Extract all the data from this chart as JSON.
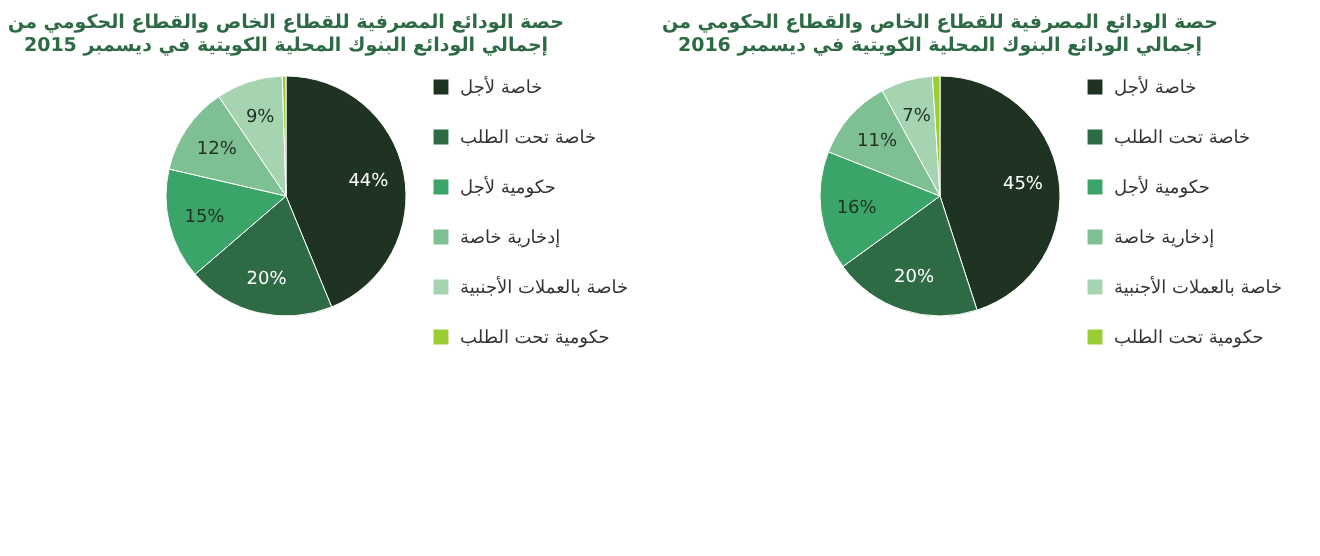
{
  "chart_data": [
    {
      "type": "pie",
      "title": "حصة الودائع المصرفية للقطاع الخاص والقطاع الحكومي من\nإجمالي الودائع البنوك المحلية الكويتية  في ديسمبر 2015",
      "categories": [
        "خاصة لأجل",
        "خاصة تحت الطلب",
        "حكومية لأجل",
        "إدخارية خاصة",
        "خاصة  بالعملات الأجنبية",
        "حكومية تحت الطلب"
      ],
      "values": [
        44,
        20,
        15,
        12,
        9,
        0.5
      ],
      "value_labels": [
        "44%",
        "20%",
        "15%",
        "12%",
        "9%",
        null
      ],
      "colors": [
        "#1f3322",
        "#2e6b45",
        "#3aa469",
        "#7fbf94",
        "#a6d3b0",
        "#9acd32"
      ],
      "legend": "right"
    },
    {
      "type": "pie",
      "title": "حصة الودائع المصرفية للقطاع الخاص والقطاع الحكومي من\nإجمالي الودائع البنوك المحلية الكويتية  في ديسمبر 2016",
      "categories": [
        "خاصة لأجل",
        "خاصة تحت الطلب",
        "حكومية لأجل",
        "إدخارية خاصة",
        "خاصة  بالعملات الأجنبية",
        "حكومية تحت الطلب"
      ],
      "values": [
        45,
        20,
        16,
        11,
        7,
        1
      ],
      "value_labels": [
        "45%",
        "20%",
        "16%",
        "11%",
        "7%",
        null
      ],
      "colors": [
        "#1f3322",
        "#2e6b45",
        "#3aa469",
        "#7fbf94",
        "#a6d3b0",
        "#9acd32"
      ],
      "legend": "right"
    }
  ]
}
